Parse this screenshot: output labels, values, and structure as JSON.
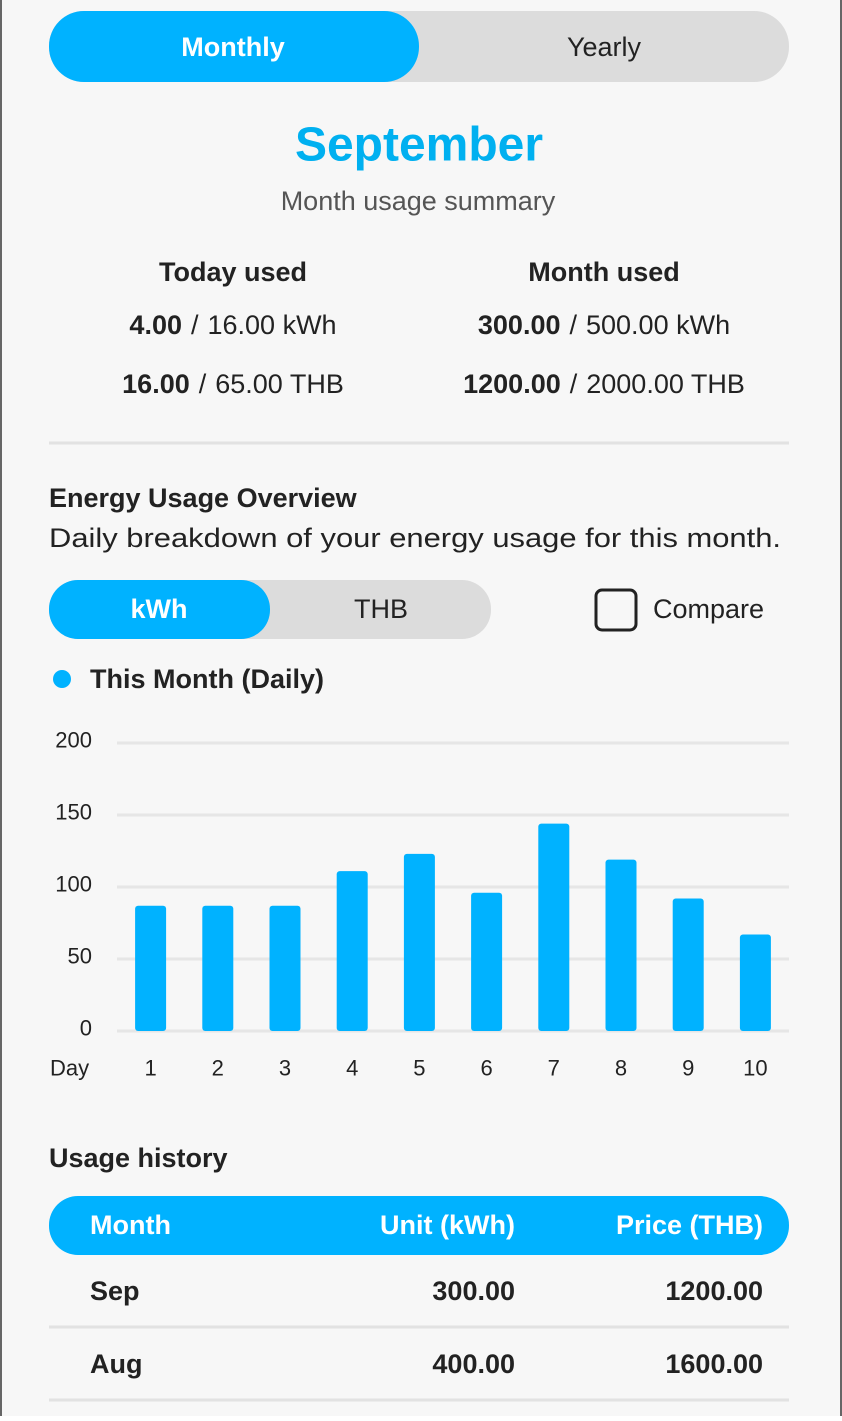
{
  "tabs": [
    "Monthly",
    "Yearly"
  ],
  "header": {
    "title": "September",
    "subtitle": "Month usage summary"
  },
  "separator": "/",
  "summary": [
    {
      "label": "Today used",
      "rows": [
        {
          "used": "4.00",
          "limit": "16.00 kWh"
        },
        {
          "used": "16.00",
          "limit": "65.00 THB"
        }
      ]
    },
    {
      "label": "Month used",
      "rows": [
        {
          "used": "300.00",
          "limit": "500.00 kWh"
        },
        {
          "used": "1200.00",
          "limit": "2000.00 THB"
        }
      ]
    }
  ],
  "overview": {
    "title": "Energy Usage Overview",
    "description": "Daily breakdown of your energy usage for this month.",
    "units": [
      "kWh",
      "THB"
    ],
    "compare": "Compare"
  },
  "chart_data": {
    "type": "bar",
    "x_label": "Day",
    "categories": [
      "1",
      "2",
      "3",
      "4",
      "5",
      "6",
      "7",
      "8",
      "9",
      "10"
    ],
    "series": [
      {
        "name": "This Month (Daily)",
        "color": "#00b2ff",
        "values": [
          87,
          87,
          87,
          111,
          123,
          96,
          144,
          119,
          92,
          67
        ]
      }
    ],
    "ylim": [
      0,
      200
    ],
    "yticks": [
      0,
      50,
      100,
      150,
      200
    ],
    "grid": true
  },
  "history": {
    "title": "Usage history",
    "columns": [
      "Month",
      "Unit (kWh)",
      "Price (THB)"
    ],
    "rows": [
      [
        "Sep",
        "300.00",
        "1200.00"
      ],
      [
        "Aug",
        "400.00",
        "1600.00"
      ]
    ]
  }
}
